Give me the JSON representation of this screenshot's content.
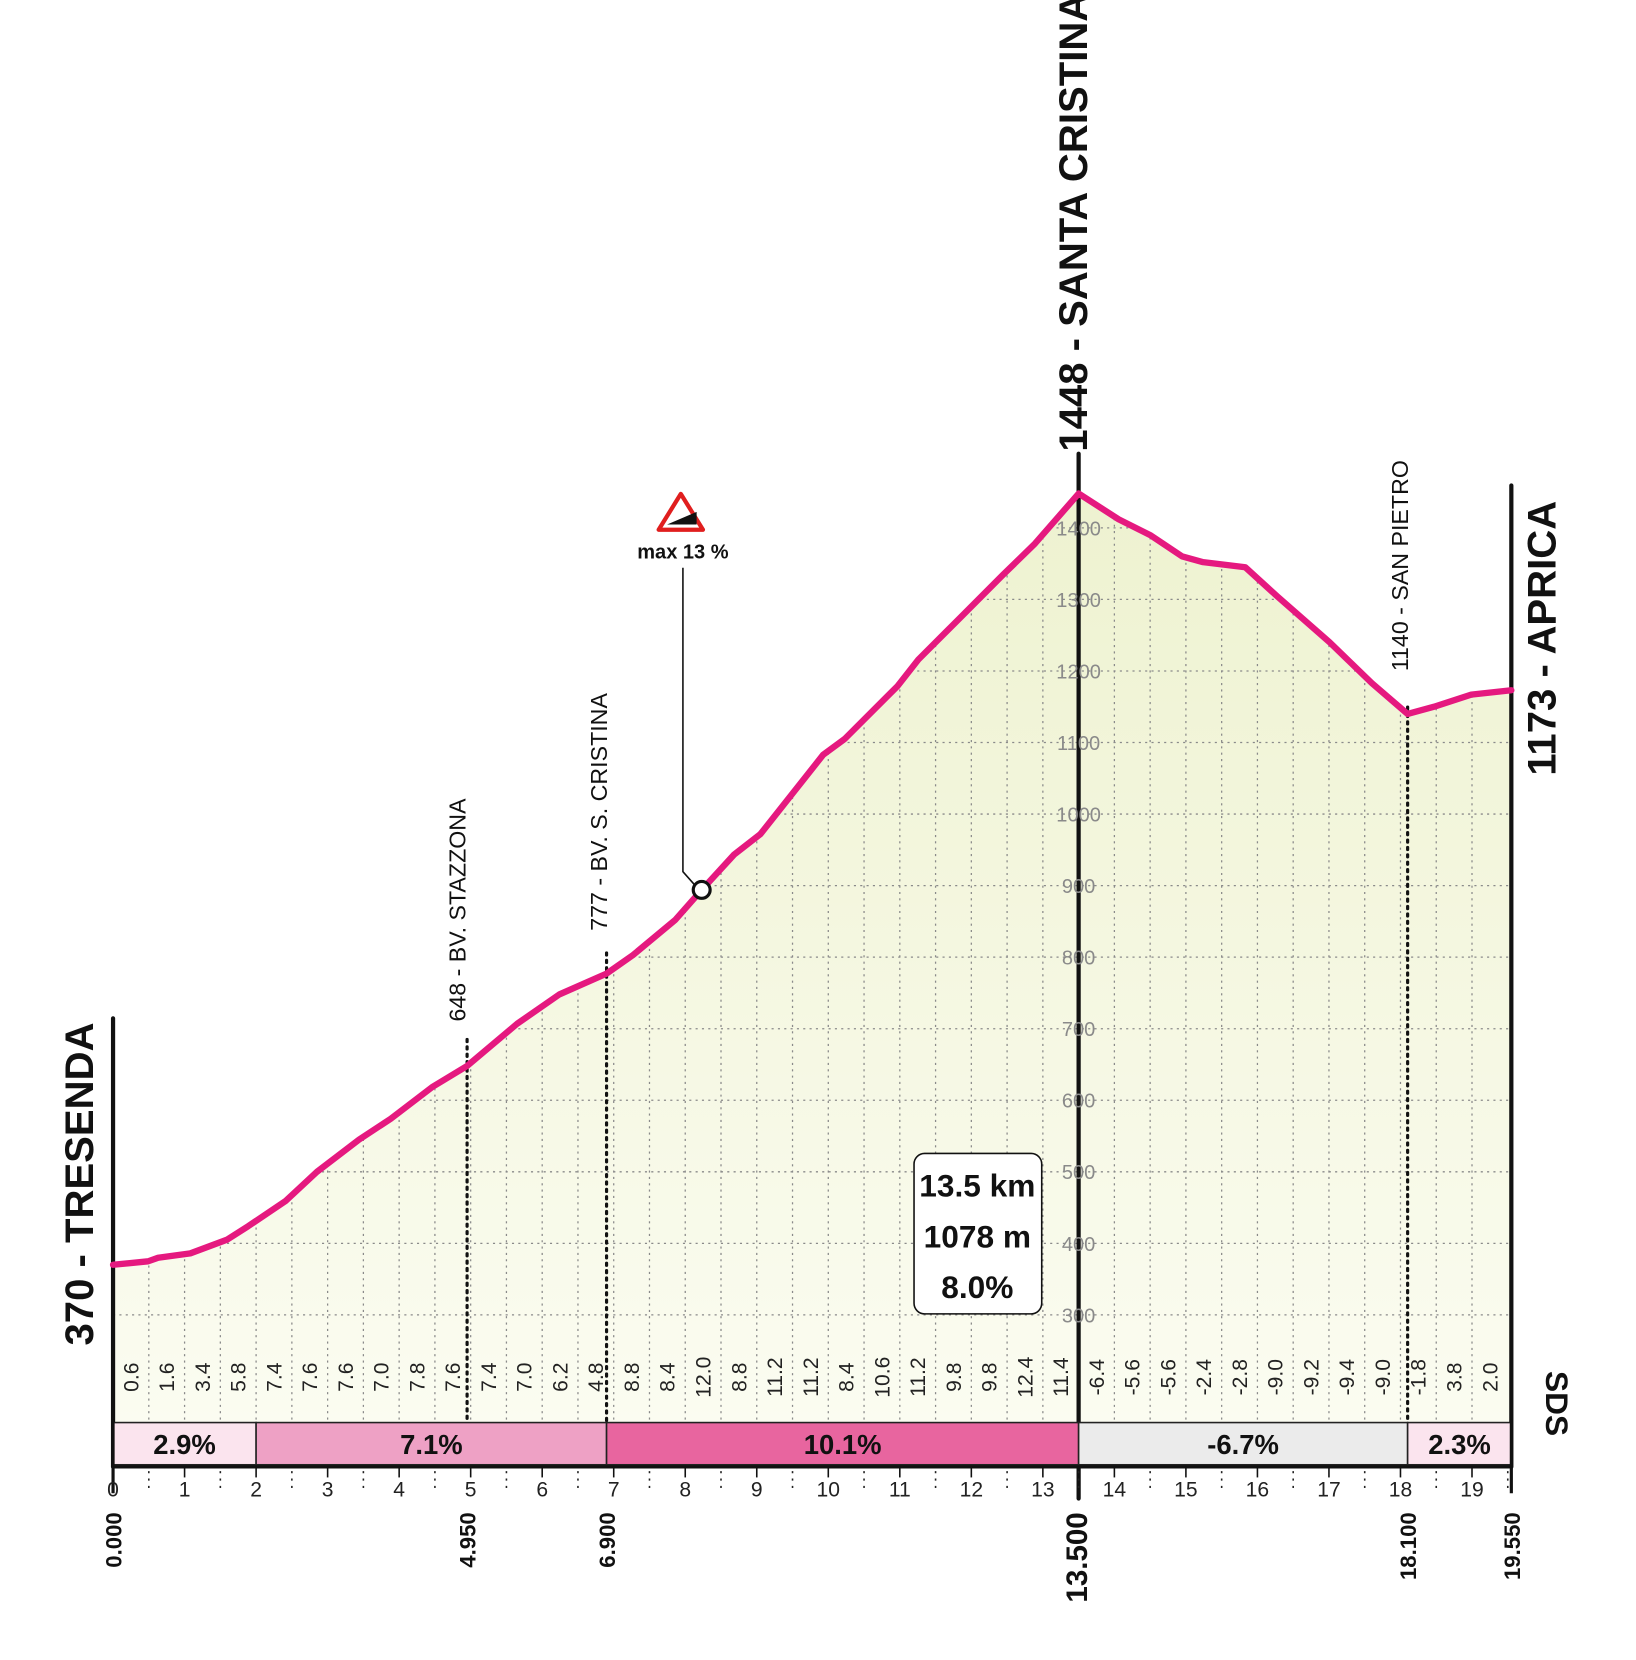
{
  "chart_data": {
    "type": "area",
    "color": "#e5197f",
    "fill": "#f3f6dc",
    "xlim": [
      0,
      19.55
    ],
    "ylim": [
      150,
      1900
    ],
    "xticks": [
      0,
      1,
      2,
      3,
      4,
      5,
      6,
      7,
      8,
      9,
      10,
      11,
      12,
      13,
      14,
      15,
      16,
      17,
      18,
      19
    ],
    "yticks": [
      300,
      400,
      500,
      600,
      700,
      800,
      900,
      1000,
      1100,
      1200,
      1300,
      1400
    ],
    "grid": true,
    "x": [
      0,
      0.49,
      0.63,
      1.08,
      1.59,
      1.89,
      2.41,
      2.85,
      3.44,
      3.88,
      4.47,
      4.95,
      5.65,
      6.24,
      6.9,
      7.27,
      7.86,
      8.23,
      8.68,
      9.05,
      9.93,
      10.23,
      10.97,
      11.26,
      11.85,
      12.44,
      12.89,
      13.5,
      14.06,
      14.5,
      14.95,
      15.24,
      15.83,
      16.28,
      17.01,
      17.6,
      18.1,
      18.47,
      18.99,
      19.55
    ],
    "values": [
      370,
      375,
      380,
      386,
      405,
      424,
      459,
      500,
      545,
      574,
      619,
      648,
      707,
      748,
      777,
      803,
      852,
      894,
      943,
      972,
      1083,
      1105,
      1179,
      1216,
      1275,
      1334,
      1378,
      1448,
      1412,
      1390,
      1360,
      1352,
      1345,
      1304,
      1240,
      1183,
      1140,
      1150,
      1167,
      1173
    ],
    "waypoints": [
      {
        "label": "370 - TRESENDA",
        "line": "solid",
        "x": {
          "value": 0,
          "label": "0.000"
        }
      },
      {
        "label": "648 - BV. STAZZONA",
        "line": "dotted",
        "x": {
          "value": 4.95,
          "label": "4.950"
        }
      },
      {
        "label": "777 - BV. S. CRISTINA",
        "line": "dotted",
        "x": {
          "value": 6.9,
          "label": "6.900"
        }
      },
      {
        "label": "1448 - SANTA CRISTINA",
        "line": "solid",
        "x": {
          "value": 13.5,
          "label": "13.500"
        }
      },
      {
        "label": "1140 - SAN PIETRO",
        "line": "dotted",
        "x": {
          "value": 18.1,
          "label": "18.100"
        }
      },
      {
        "label": "1173 - APRICA",
        "line": "solid",
        "x": {
          "value": 19.55,
          "label": "19.550"
        }
      }
    ],
    "segment_gradients": [
      "0.6",
      "1.6",
      "3.4",
      "5.8",
      "7.4",
      "7.6",
      "7.6",
      "7.0",
      "7.8",
      "7.6",
      "7.4",
      "7.0",
      "6.2",
      "4.8",
      "8.8",
      "8.4",
      "12.0",
      "8.8",
      "11.2",
      "11.2",
      "8.4",
      "10.6",
      "11.2",
      "9.8",
      "9.8",
      "12.4",
      "11.4",
      "-6.4",
      "-5.6",
      "-5.6",
      "-2.4",
      "-2.8",
      "-9.0",
      "-9.2",
      "-9.4",
      "-9.0",
      "-1.8",
      "3.8",
      "2.0"
    ],
    "sectors": {
      "edges": [
        0,
        2,
        6.9,
        13.5,
        18.1,
        19.55
      ],
      "values": [
        2.9,
        7.1,
        10.1,
        -6.7,
        2.3
      ],
      "value_labels": [
        "2.9%",
        "7.1%",
        "10.1%",
        "-6.7%",
        "2.3%"
      ],
      "colors": [
        "#fbe4ee",
        "#eea1c5",
        "#e8659f",
        "#ebebeb",
        "#fbe4ee"
      ]
    },
    "summary": [
      "13.5 km",
      "1078 m",
      "8.0%"
    ],
    "max_gradient": {
      "label": "max 13 %",
      "x": 8.23,
      "y": 894
    },
    "logo": "SDS"
  }
}
